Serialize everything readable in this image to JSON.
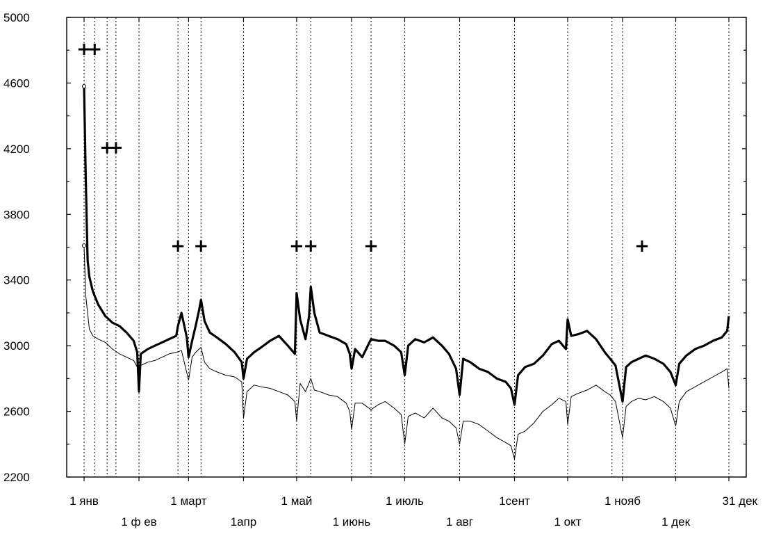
{
  "chart_data": {
    "type": "line",
    "title": "",
    "xlabel": "",
    "ylabel": "",
    "ylim": [
      2200,
      5000
    ],
    "yticks": [
      2200,
      2600,
      3000,
      3400,
      3800,
      4200,
      4600,
      5000
    ],
    "xlim": [
      0,
      365
    ],
    "xticks": [
      {
        "label": "1 янв",
        "day": 0,
        "row": 1
      },
      {
        "label": "1 ф ев",
        "day": 31,
        "row": 2
      },
      {
        "label": "1 март",
        "day": 59,
        "row": 1
      },
      {
        "label": "1апр",
        "day": 90,
        "row": 2
      },
      {
        "label": "1 май",
        "day": 120,
        "row": 1
      },
      {
        "label": "1 июнь",
        "day": 151,
        "row": 2
      },
      {
        "label": "1 июль",
        "day": 181,
        "row": 1
      },
      {
        "label": "1 авг",
        "day": 212,
        "row": 2
      },
      {
        "label": "1сент",
        "day": 243,
        "row": 1
      },
      {
        "label": "1 окт",
        "day": 273,
        "row": 2
      },
      {
        "label": "1 нояб",
        "day": 304,
        "row": 1
      },
      {
        "label": "1 дек",
        "day": 334,
        "row": 2
      },
      {
        "label": "31 дек",
        "day": 364,
        "row": 1
      }
    ],
    "grid_days": [
      0,
      6,
      13,
      18,
      31,
      53,
      59,
      66,
      90,
      120,
      128,
      151,
      162,
      181,
      212,
      243,
      273,
      298,
      304,
      334,
      364
    ],
    "markers": [
      {
        "day": 0,
        "y": 4810,
        "symbol": "+"
      },
      {
        "day": 6,
        "y": 4810,
        "symbol": "+"
      },
      {
        "day": 13,
        "y": 4210,
        "symbol": "+"
      },
      {
        "day": 18,
        "y": 4210,
        "symbol": "+"
      },
      {
        "day": 53,
        "y": 3610,
        "symbol": "+"
      },
      {
        "day": 66,
        "y": 3610,
        "symbol": "+"
      },
      {
        "day": 120,
        "y": 3610,
        "symbol": "+"
      },
      {
        "day": 128,
        "y": 3610,
        "symbol": "+"
      },
      {
        "day": 162,
        "y": 3610,
        "symbol": "+"
      },
      {
        "day": 315,
        "y": 3610,
        "symbol": "+"
      }
    ],
    "series": [
      {
        "style": "thick",
        "x": [
          0,
          1,
          2,
          3,
          5,
          8,
          12,
          16,
          20,
          24,
          28,
          30,
          31,
          32,
          36,
          40,
          44,
          48,
          52,
          53,
          55,
          58,
          59,
          61,
          63,
          65,
          66,
          68,
          71,
          75,
          80,
          85,
          89,
          90,
          92,
          96,
          100,
          105,
          110,
          115,
          119,
          120,
          122,
          125,
          127,
          128,
          130,
          133,
          138,
          143,
          148,
          150,
          151,
          153,
          157,
          162,
          166,
          170,
          175,
          179,
          181,
          183,
          187,
          192,
          197,
          202,
          206,
          210,
          212,
          214,
          218,
          223,
          228,
          233,
          238,
          241,
          243,
          245,
          249,
          254,
          259,
          264,
          268,
          272,
          273,
          275,
          279,
          284,
          289,
          294,
          297,
          300,
          304,
          306,
          309,
          313,
          317,
          322,
          327,
          331,
          334,
          336,
          340,
          345,
          350,
          355,
          360,
          363,
          364
        ],
        "y": [
          4580,
          4000,
          3520,
          3420,
          3330,
          3250,
          3180,
          3140,
          3120,
          3080,
          3030,
          2960,
          2720,
          2950,
          2980,
          3000,
          3020,
          3040,
          3060,
          3120,
          3200,
          3050,
          2930,
          3030,
          3120,
          3220,
          3280,
          3150,
          3080,
          3050,
          3010,
          2960,
          2900,
          2800,
          2920,
          2960,
          2990,
          3030,
          3060,
          3000,
          2950,
          3320,
          3160,
          3040,
          3180,
          3360,
          3200,
          3080,
          3060,
          3040,
          3010,
          2950,
          2860,
          2980,
          2930,
          3040,
          3030,
          3030,
          3000,
          2960,
          2820,
          3000,
          3040,
          3020,
          3050,
          3000,
          2950,
          2860,
          2700,
          2920,
          2900,
          2860,
          2840,
          2800,
          2780,
          2740,
          2640,
          2820,
          2870,
          2890,
          2940,
          3010,
          3030,
          2980,
          3160,
          3060,
          3070,
          3090,
          3040,
          2960,
          2920,
          2880,
          2660,
          2870,
          2900,
          2920,
          2940,
          2920,
          2890,
          2840,
          2760,
          2890,
          2940,
          2980,
          3000,
          3030,
          3050,
          3090,
          3180
        ]
      },
      {
        "style": "thin",
        "x": [
          0,
          1,
          2,
          3,
          5,
          8,
          12,
          16,
          20,
          24,
          28,
          30,
          31,
          32,
          36,
          40,
          44,
          48,
          52,
          55,
          59,
          61,
          63,
          66,
          68,
          71,
          75,
          80,
          85,
          89,
          90,
          92,
          96,
          100,
          105,
          110,
          115,
          119,
          120,
          122,
          125,
          128,
          130,
          133,
          138,
          143,
          148,
          150,
          151,
          153,
          157,
          162,
          166,
          170,
          175,
          179,
          181,
          183,
          187,
          192,
          197,
          202,
          206,
          210,
          212,
          214,
          218,
          223,
          228,
          233,
          238,
          241,
          243,
          245,
          249,
          254,
          259,
          264,
          268,
          272,
          273,
          275,
          279,
          284,
          289,
          294,
          297,
          300,
          304,
          306,
          309,
          313,
          317,
          322,
          327,
          331,
          334,
          336,
          340,
          345,
          350,
          355,
          360,
          363,
          364
        ],
        "y": [
          3610,
          3300,
          3200,
          3100,
          3060,
          3040,
          3020,
          2980,
          2950,
          2930,
          2910,
          2870,
          2720,
          2880,
          2900,
          2910,
          2930,
          2950,
          2960,
          2970,
          2790,
          2930,
          2960,
          2990,
          2900,
          2860,
          2840,
          2820,
          2810,
          2780,
          2560,
          2720,
          2760,
          2750,
          2740,
          2720,
          2700,
          2660,
          2540,
          2770,
          2720,
          2800,
          2730,
          2720,
          2700,
          2690,
          2650,
          2600,
          2490,
          2650,
          2650,
          2610,
          2640,
          2660,
          2620,
          2580,
          2400,
          2570,
          2590,
          2560,
          2620,
          2560,
          2540,
          2500,
          2400,
          2540,
          2540,
          2520,
          2480,
          2440,
          2410,
          2390,
          2310,
          2460,
          2480,
          2530,
          2600,
          2640,
          2680,
          2660,
          2520,
          2690,
          2710,
          2730,
          2760,
          2720,
          2700,
          2660,
          2440,
          2630,
          2660,
          2680,
          2670,
          2690,
          2660,
          2620,
          2510,
          2660,
          2720,
          2750,
          2780,
          2810,
          2840,
          2860,
          2740
        ]
      }
    ]
  }
}
